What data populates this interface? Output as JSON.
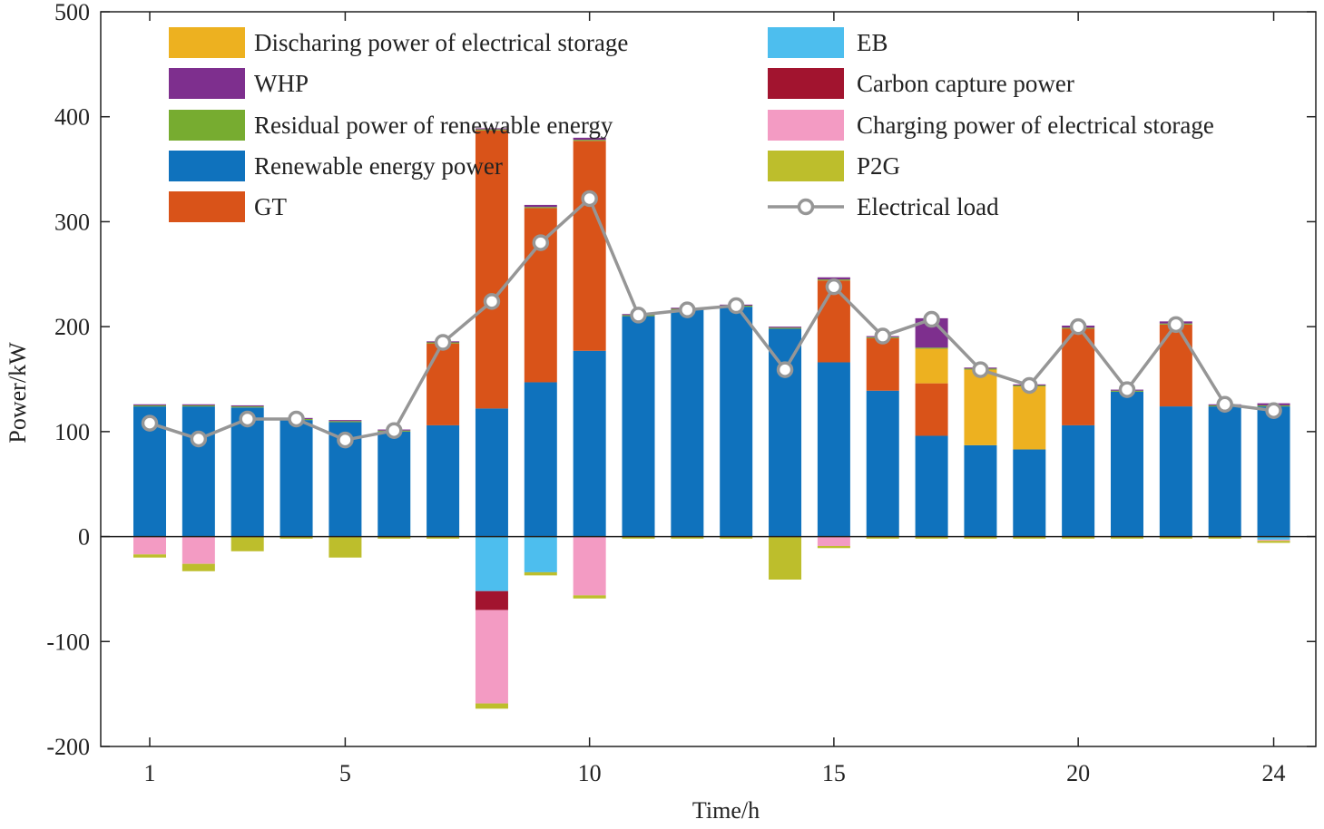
{
  "chart_data": {
    "type": "bar",
    "stacked": true,
    "xlabel": "Time/h",
    "ylabel": "Power/kW",
    "ylim": [
      -200,
      500
    ],
    "yticks": [
      -200,
      -100,
      0,
      100,
      200,
      300,
      400,
      500
    ],
    "xticks": [
      1,
      5,
      10,
      15,
      20,
      24
    ],
    "categories": [
      1,
      2,
      3,
      4,
      5,
      6,
      7,
      8,
      9,
      10,
      11,
      12,
      13,
      14,
      15,
      16,
      17,
      18,
      19,
      20,
      21,
      22,
      23,
      24
    ],
    "positive_series": [
      {
        "key": "renewable",
        "name": "Renewable energy power",
        "color": "#0F72BD",
        "values": [
          124,
          124,
          123,
          111,
          109,
          100,
          106,
          122,
          147,
          177,
          210,
          216,
          219,
          198,
          166,
          139,
          96,
          87,
          83,
          106,
          138,
          124,
          124,
          124
        ]
      },
      {
        "key": "gt",
        "name": "GT",
        "color": "#D95319",
        "values": [
          0,
          0,
          0,
          0,
          0,
          0,
          78,
          265,
          166,
          200,
          0,
          0,
          0,
          0,
          78,
          50,
          50,
          0,
          0,
          92,
          0,
          78,
          0,
          0
        ]
      },
      {
        "key": "discharge",
        "name": "Discharing power of electrical  storage",
        "color": "#EDB120",
        "values": [
          0,
          0,
          0,
          0,
          0,
          0,
          0,
          0,
          0,
          0,
          0,
          0,
          0,
          0,
          0,
          0,
          33,
          72,
          60,
          0,
          0,
          0,
          0,
          0
        ]
      },
      {
        "key": "residual",
        "name": "Residual power of renewable energy",
        "color": "#77AC30",
        "values": [
          1,
          1,
          1,
          1,
          1,
          1,
          1,
          1,
          1,
          1,
          1,
          1,
          1,
          1,
          1,
          1,
          1,
          1,
          1,
          1,
          1,
          1,
          1,
          1
        ]
      },
      {
        "key": "whp",
        "name": "WHP",
        "color": "#7E2F8E",
        "values": [
          1,
          1,
          1,
          1,
          1,
          1,
          1,
          1,
          2,
          2,
          1,
          1,
          1,
          1,
          2,
          1,
          28,
          1,
          1,
          2,
          1,
          2,
          1,
          2
        ]
      }
    ],
    "negative_series": [
      {
        "key": "eb",
        "name": "EB",
        "color": "#4DBEEE",
        "values": [
          0,
          0,
          0,
          0,
          0,
          0,
          0,
          -52,
          -34,
          0,
          0,
          0,
          0,
          0,
          0,
          0,
          0,
          0,
          0,
          0,
          0,
          0,
          0,
          -3
        ]
      },
      {
        "key": "cc",
        "name": "Carbon capture power",
        "color": "#A2142F",
        "values": [
          0,
          0,
          0,
          0,
          0,
          0,
          0,
          -18,
          0,
          0,
          0,
          0,
          0,
          0,
          0,
          0,
          0,
          0,
          0,
          0,
          0,
          0,
          0,
          0
        ]
      },
      {
        "key": "charge",
        "name": "Charging power of electrical storage",
        "color": "#F39BC3",
        "values": [
          -17,
          -26,
          0,
          0,
          0,
          0,
          0,
          -89,
          0,
          -56,
          0,
          0,
          0,
          0,
          -9,
          0,
          0,
          0,
          0,
          0,
          0,
          0,
          0,
          -1
        ]
      },
      {
        "key": "p2g",
        "name": "P2G",
        "color": "#BDBE2C",
        "values": [
          -3,
          -7,
          -14,
          -2,
          -20,
          -2,
          -2,
          -5,
          -3,
          -3,
          -2,
          -2,
          -2,
          -41,
          -2,
          -2,
          -2,
          -2,
          -2,
          -2,
          -2,
          -2,
          -2,
          -2
        ]
      }
    ],
    "line_series": {
      "name": "Electrical load",
      "color": "#969696",
      "values": [
        108,
        93,
        112,
        112,
        92,
        101,
        185,
        224,
        280,
        322,
        211,
        216,
        220,
        159,
        238,
        191,
        207,
        159,
        144,
        200,
        140,
        202,
        126,
        120
      ]
    },
    "legend": {
      "left": [
        "discharge",
        "whp",
        "residual",
        "renewable",
        "gt"
      ],
      "right": [
        "eb",
        "cc",
        "charge",
        "p2g",
        "line"
      ]
    }
  }
}
